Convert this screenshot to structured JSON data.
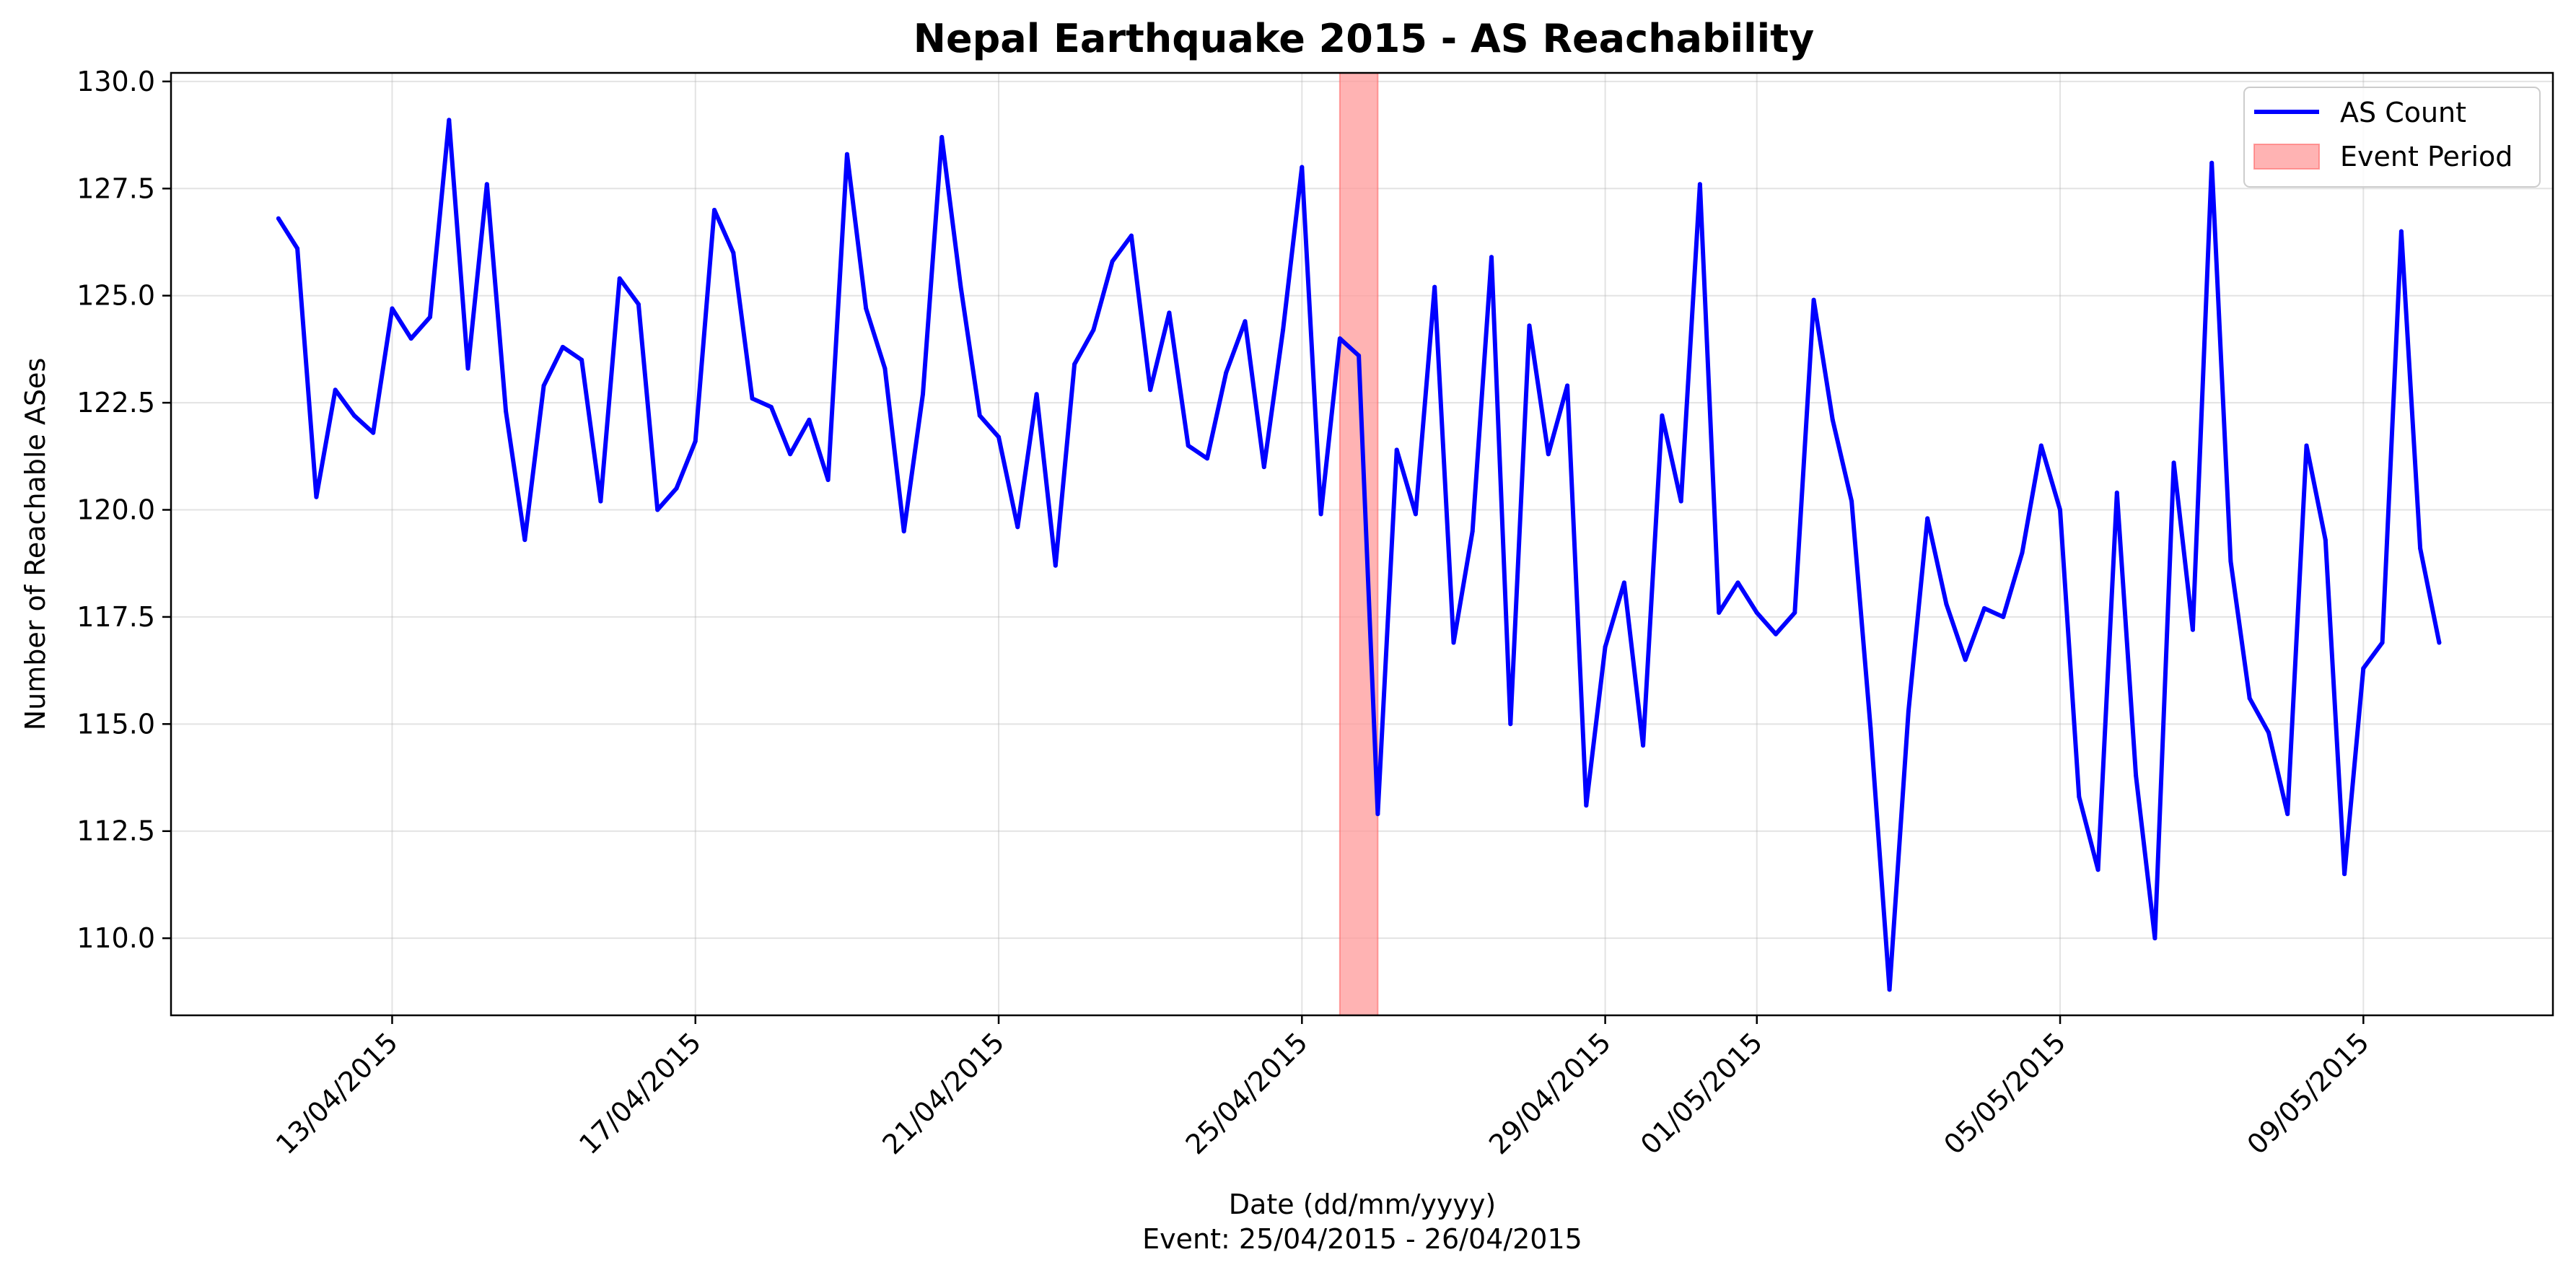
{
  "chart_data": {
    "type": "line",
    "title": "Nepal Earthquake 2015 - AS Reachability",
    "xlabel": "Date (dd/mm/yyyy)",
    "xlabel_note": "Event: 25/04/2015 - 26/04/2015",
    "ylabel": "Number of Reachable ASes",
    "x_range": [
      "2015-04-10T02:00",
      "2015-05-11T12:00"
    ],
    "ylim": [
      108.2,
      130.2
    ],
    "yticks": [
      "110.0",
      "112.5",
      "115.0",
      "117.5",
      "120.0",
      "122.5",
      "125.0",
      "127.5",
      "130.0"
    ],
    "xticks": [
      {
        "date": "2015-04-13",
        "label": "13/04/2015"
      },
      {
        "date": "2015-04-17",
        "label": "17/04/2015"
      },
      {
        "date": "2015-04-21",
        "label": "21/04/2015"
      },
      {
        "date": "2015-04-25",
        "label": "25/04/2015"
      },
      {
        "date": "2015-04-29",
        "label": "29/04/2015"
      },
      {
        "date": "2015-05-01",
        "label": "01/05/2015"
      },
      {
        "date": "2015-05-05",
        "label": "05/05/2015"
      },
      {
        "date": "2015-05-09",
        "label": "09/05/2015"
      }
    ],
    "grid": true,
    "legend_position": "top-right",
    "event": {
      "name": "Event Period",
      "start": "2015-04-25T12:00",
      "end": "2015-04-26T00:00",
      "color": "#ff9999"
    },
    "series": [
      {
        "name": "AS Count",
        "color": "#0000ff",
        "start": "2015-04-11T12:00",
        "step_hours": 6,
        "values": [
          126.8,
          126.1,
          120.3,
          122.8,
          122.2,
          121.8,
          124.7,
          124.0,
          124.5,
          129.1,
          123.3,
          127.6,
          122.3,
          119.3,
          122.9,
          123.8,
          123.5,
          120.2,
          125.4,
          124.8,
          120.0,
          120.5,
          121.6,
          127.0,
          126.0,
          122.6,
          122.4,
          121.3,
          122.1,
          120.7,
          128.3,
          124.7,
          123.3,
          119.5,
          122.7,
          128.7,
          125.2,
          122.2,
          121.7,
          119.6,
          122.7,
          118.7,
          123.4,
          124.2,
          125.8,
          126.4,
          122.8,
          124.6,
          121.5,
          121.2,
          123.2,
          124.4,
          121.0,
          124.2,
          128.0,
          119.9,
          124.0,
          123.6,
          112.9,
          121.4,
          119.9,
          125.2,
          116.9,
          119.5,
          125.9,
          115.0,
          124.3,
          121.3,
          122.9,
          113.1,
          116.8,
          118.3,
          114.5,
          122.2,
          120.2,
          127.6,
          117.6,
          118.3,
          117.6,
          117.1,
          117.6,
          124.9,
          122.1,
          120.2,
          114.9,
          108.8,
          115.3,
          119.8,
          117.8,
          116.5,
          117.7,
          117.5,
          119.0,
          121.5,
          120.0,
          113.3,
          111.6,
          120.4,
          113.8,
          110.0,
          121.1,
          117.2,
          128.1,
          118.8,
          115.6,
          114.8,
          112.9,
          121.5,
          119.3,
          111.5,
          116.3,
          116.9,
          126.5,
          119.1,
          116.9
        ]
      }
    ]
  }
}
